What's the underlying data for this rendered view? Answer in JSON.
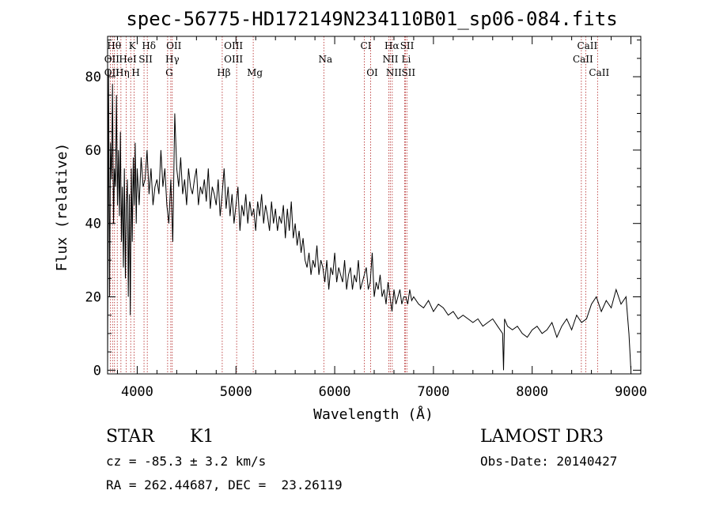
{
  "chart_data": {
    "type": "line",
    "title": "spec-56775-HD172149N234110B01_sp06-084.fits",
    "xlabel": "Wavelength (Å)",
    "ylabel": "Flux (relative)",
    "xlim": [
      3700,
      9100
    ],
    "ylim": [
      -1,
      91
    ],
    "xticks": [
      4000,
      5000,
      6000,
      7000,
      8000,
      9000
    ],
    "yticks": [
      0,
      20,
      40,
      60,
      80
    ],
    "series": [
      {
        "name": "flux",
        "x": [
          3700,
          3710,
          3720,
          3730,
          3740,
          3750,
          3760,
          3770,
          3780,
          3790,
          3800,
          3810,
          3820,
          3830,
          3840,
          3850,
          3860,
          3870,
          3880,
          3890,
          3900,
          3910,
          3920,
          3930,
          3940,
          3950,
          3960,
          3970,
          3980,
          3990,
          4000,
          4020,
          4040,
          4060,
          4080,
          4100,
          4120,
          4140,
          4160,
          4180,
          4200,
          4220,
          4240,
          4260,
          4280,
          4300,
          4320,
          4340,
          4360,
          4380,
          4400,
          4420,
          4440,
          4460,
          4480,
          4500,
          4520,
          4540,
          4560,
          4580,
          4600,
          4620,
          4640,
          4660,
          4680,
          4700,
          4720,
          4740,
          4760,
          4780,
          4800,
          4820,
          4840,
          4860,
          4880,
          4900,
          4920,
          4940,
          4960,
          4980,
          5000,
          5020,
          5040,
          5060,
          5080,
          5100,
          5120,
          5140,
          5160,
          5180,
          5200,
          5220,
          5240,
          5260,
          5280,
          5300,
          5320,
          5340,
          5360,
          5380,
          5400,
          5420,
          5440,
          5460,
          5480,
          5500,
          5520,
          5540,
          5560,
          5580,
          5600,
          5620,
          5640,
          5660,
          5680,
          5700,
          5720,
          5740,
          5760,
          5780,
          5800,
          5820,
          5840,
          5860,
          5880,
          5900,
          5920,
          5940,
          5960,
          5980,
          6000,
          6020,
          6040,
          6060,
          6080,
          6100,
          6120,
          6140,
          6160,
          6180,
          6200,
          6220,
          6240,
          6260,
          6280,
          6300,
          6320,
          6340,
          6360,
          6380,
          6400,
          6420,
          6440,
          6460,
          6480,
          6500,
          6520,
          6540,
          6560,
          6580,
          6600,
          6620,
          6640,
          6660,
          6680,
          6700,
          6720,
          6740,
          6760,
          6780,
          6800,
          6850,
          6900,
          6950,
          7000,
          7050,
          7100,
          7150,
          7200,
          7250,
          7300,
          7350,
          7400,
          7450,
          7500,
          7550,
          7600,
          7650,
          7700,
          7710,
          7720,
          7750,
          7800,
          7850,
          7900,
          7950,
          8000,
          8050,
          8100,
          8150,
          8200,
          8250,
          8300,
          8350,
          8400,
          8450,
          8500,
          8550,
          8600,
          8650,
          8700,
          8750,
          8800,
          8850,
          8900,
          8950,
          8980,
          9000
        ],
        "y": [
          0,
          82,
          20,
          62,
          52,
          78,
          40,
          55,
          50,
          75,
          45,
          60,
          42,
          65,
          35,
          50,
          28,
          55,
          25,
          45,
          52,
          20,
          48,
          15,
          55,
          35,
          58,
          45,
          62,
          40,
          55,
          45,
          58,
          50,
          52,
          60,
          48,
          55,
          45,
          50,
          52,
          48,
          60,
          50,
          55,
          45,
          40,
          52,
          35,
          70,
          55,
          50,
          58,
          48,
          52,
          45,
          55,
          50,
          48,
          52,
          55,
          45,
          50,
          48,
          52,
          46,
          55,
          44,
          50,
          48,
          45,
          52,
          42,
          48,
          55,
          44,
          50,
          42,
          48,
          40,
          45,
          50,
          38,
          45,
          42,
          48,
          40,
          46,
          42,
          44,
          38,
          46,
          42,
          48,
          40,
          45,
          42,
          38,
          46,
          40,
          44,
          38,
          42,
          40,
          45,
          36,
          44,
          38,
          46,
          36,
          40,
          34,
          38,
          32,
          36,
          30,
          28,
          32,
          26,
          30,
          28,
          34,
          26,
          30,
          28,
          24,
          30,
          22,
          28,
          26,
          32,
          24,
          28,
          26,
          24,
          30,
          22,
          26,
          28,
          22,
          26,
          24,
          30,
          22,
          24,
          26,
          28,
          22,
          24,
          32,
          20,
          24,
          22,
          26,
          20,
          22,
          18,
          24,
          20,
          16,
          22,
          18,
          20,
          22,
          18,
          20,
          20,
          18,
          22,
          19,
          20,
          18,
          17,
          19,
          16,
          18,
          17,
          15,
          16,
          14,
          15,
          14,
          13,
          14,
          12,
          13,
          14,
          12,
          10,
          0,
          14,
          12,
          11,
          12,
          10,
          9,
          11,
          12,
          10,
          11,
          13,
          9,
          12,
          14,
          11,
          15,
          13,
          14,
          18,
          20,
          16,
          19,
          17,
          22,
          18,
          20,
          10,
          0
        ]
      }
    ],
    "line_marks": [
      {
        "label": "Hθ",
        "x": 3750,
        "row": 1
      },
      {
        "label": "K",
        "x": 3934,
        "row": 1
      },
      {
        "label": "Hδ",
        "x": 4102,
        "row": 1
      },
      {
        "label": "OII",
        "x": 4355,
        "row": 1
      },
      {
        "label": "OIII",
        "x": 4959,
        "row": 1
      },
      {
        "label": "CI",
        "x": 6300,
        "row": 1
      },
      {
        "label": "Hα",
        "x": 6563,
        "row": 1
      },
      {
        "label": "SII",
        "x": 6717,
        "row": 1
      },
      {
        "label": "CaII",
        "x": 8542,
        "row": 1
      },
      {
        "label": "OII",
        "x": 3727,
        "row": 2
      },
      {
        "label": "HeI",
        "x": 3889,
        "row": 2
      },
      {
        "label": "SII",
        "x": 4069,
        "row": 2
      },
      {
        "label": "Hγ",
        "x": 4340,
        "row": 2
      },
      {
        "label": "OIII",
        "x": 4959,
        "row": 2
      },
      {
        "label": "Na",
        "x": 5890,
        "row": 2
      },
      {
        "label": "NII",
        "x": 6548,
        "row": 2
      },
      {
        "label": "Li",
        "x": 6708,
        "row": 2
      },
      {
        "label": "CaII",
        "x": 8498,
        "row": 2
      },
      {
        "label": "OII",
        "x": 3727,
        "row": 3
      },
      {
        "label": "Hη",
        "x": 3835,
        "row": 3
      },
      {
        "label": "H",
        "x": 3969,
        "row": 3
      },
      {
        "label": "G",
        "x": 4308,
        "row": 3
      },
      {
        "label": "Hβ",
        "x": 4861,
        "row": 3
      },
      {
        "label": "Mg",
        "x": 5175,
        "row": 3
      },
      {
        "label": "OI",
        "x": 6364,
        "row": 3
      },
      {
        "label": "NII",
        "x": 6583,
        "row": 3
      },
      {
        "label": "SII",
        "x": 6731,
        "row": 3
      },
      {
        "label": "CaII",
        "x": 8662,
        "row": 3
      }
    ],
    "line_positions": [
      3727,
      3750,
      3770,
      3798,
      3835,
      3889,
      3934,
      3969,
      4069,
      4102,
      4308,
      4340,
      4355,
      4861,
      5007,
      5175,
      5890,
      6300,
      6364,
      6548,
      6563,
      6583,
      6708,
      6717,
      6731,
      8498,
      8542,
      8662
    ]
  },
  "info": {
    "class_label": "STAR",
    "subclass_label": "K1",
    "survey_label": "LAMOST DR3",
    "cz_text": "cz = -85.3 ± 3.2 km/s",
    "obs_date_text": "Obs-Date: 20140427",
    "coords_text": "RA = 262.44687, DEC =  23.26119"
  },
  "colors": {
    "line_mark": "#b22222",
    "trace": "#000000"
  }
}
